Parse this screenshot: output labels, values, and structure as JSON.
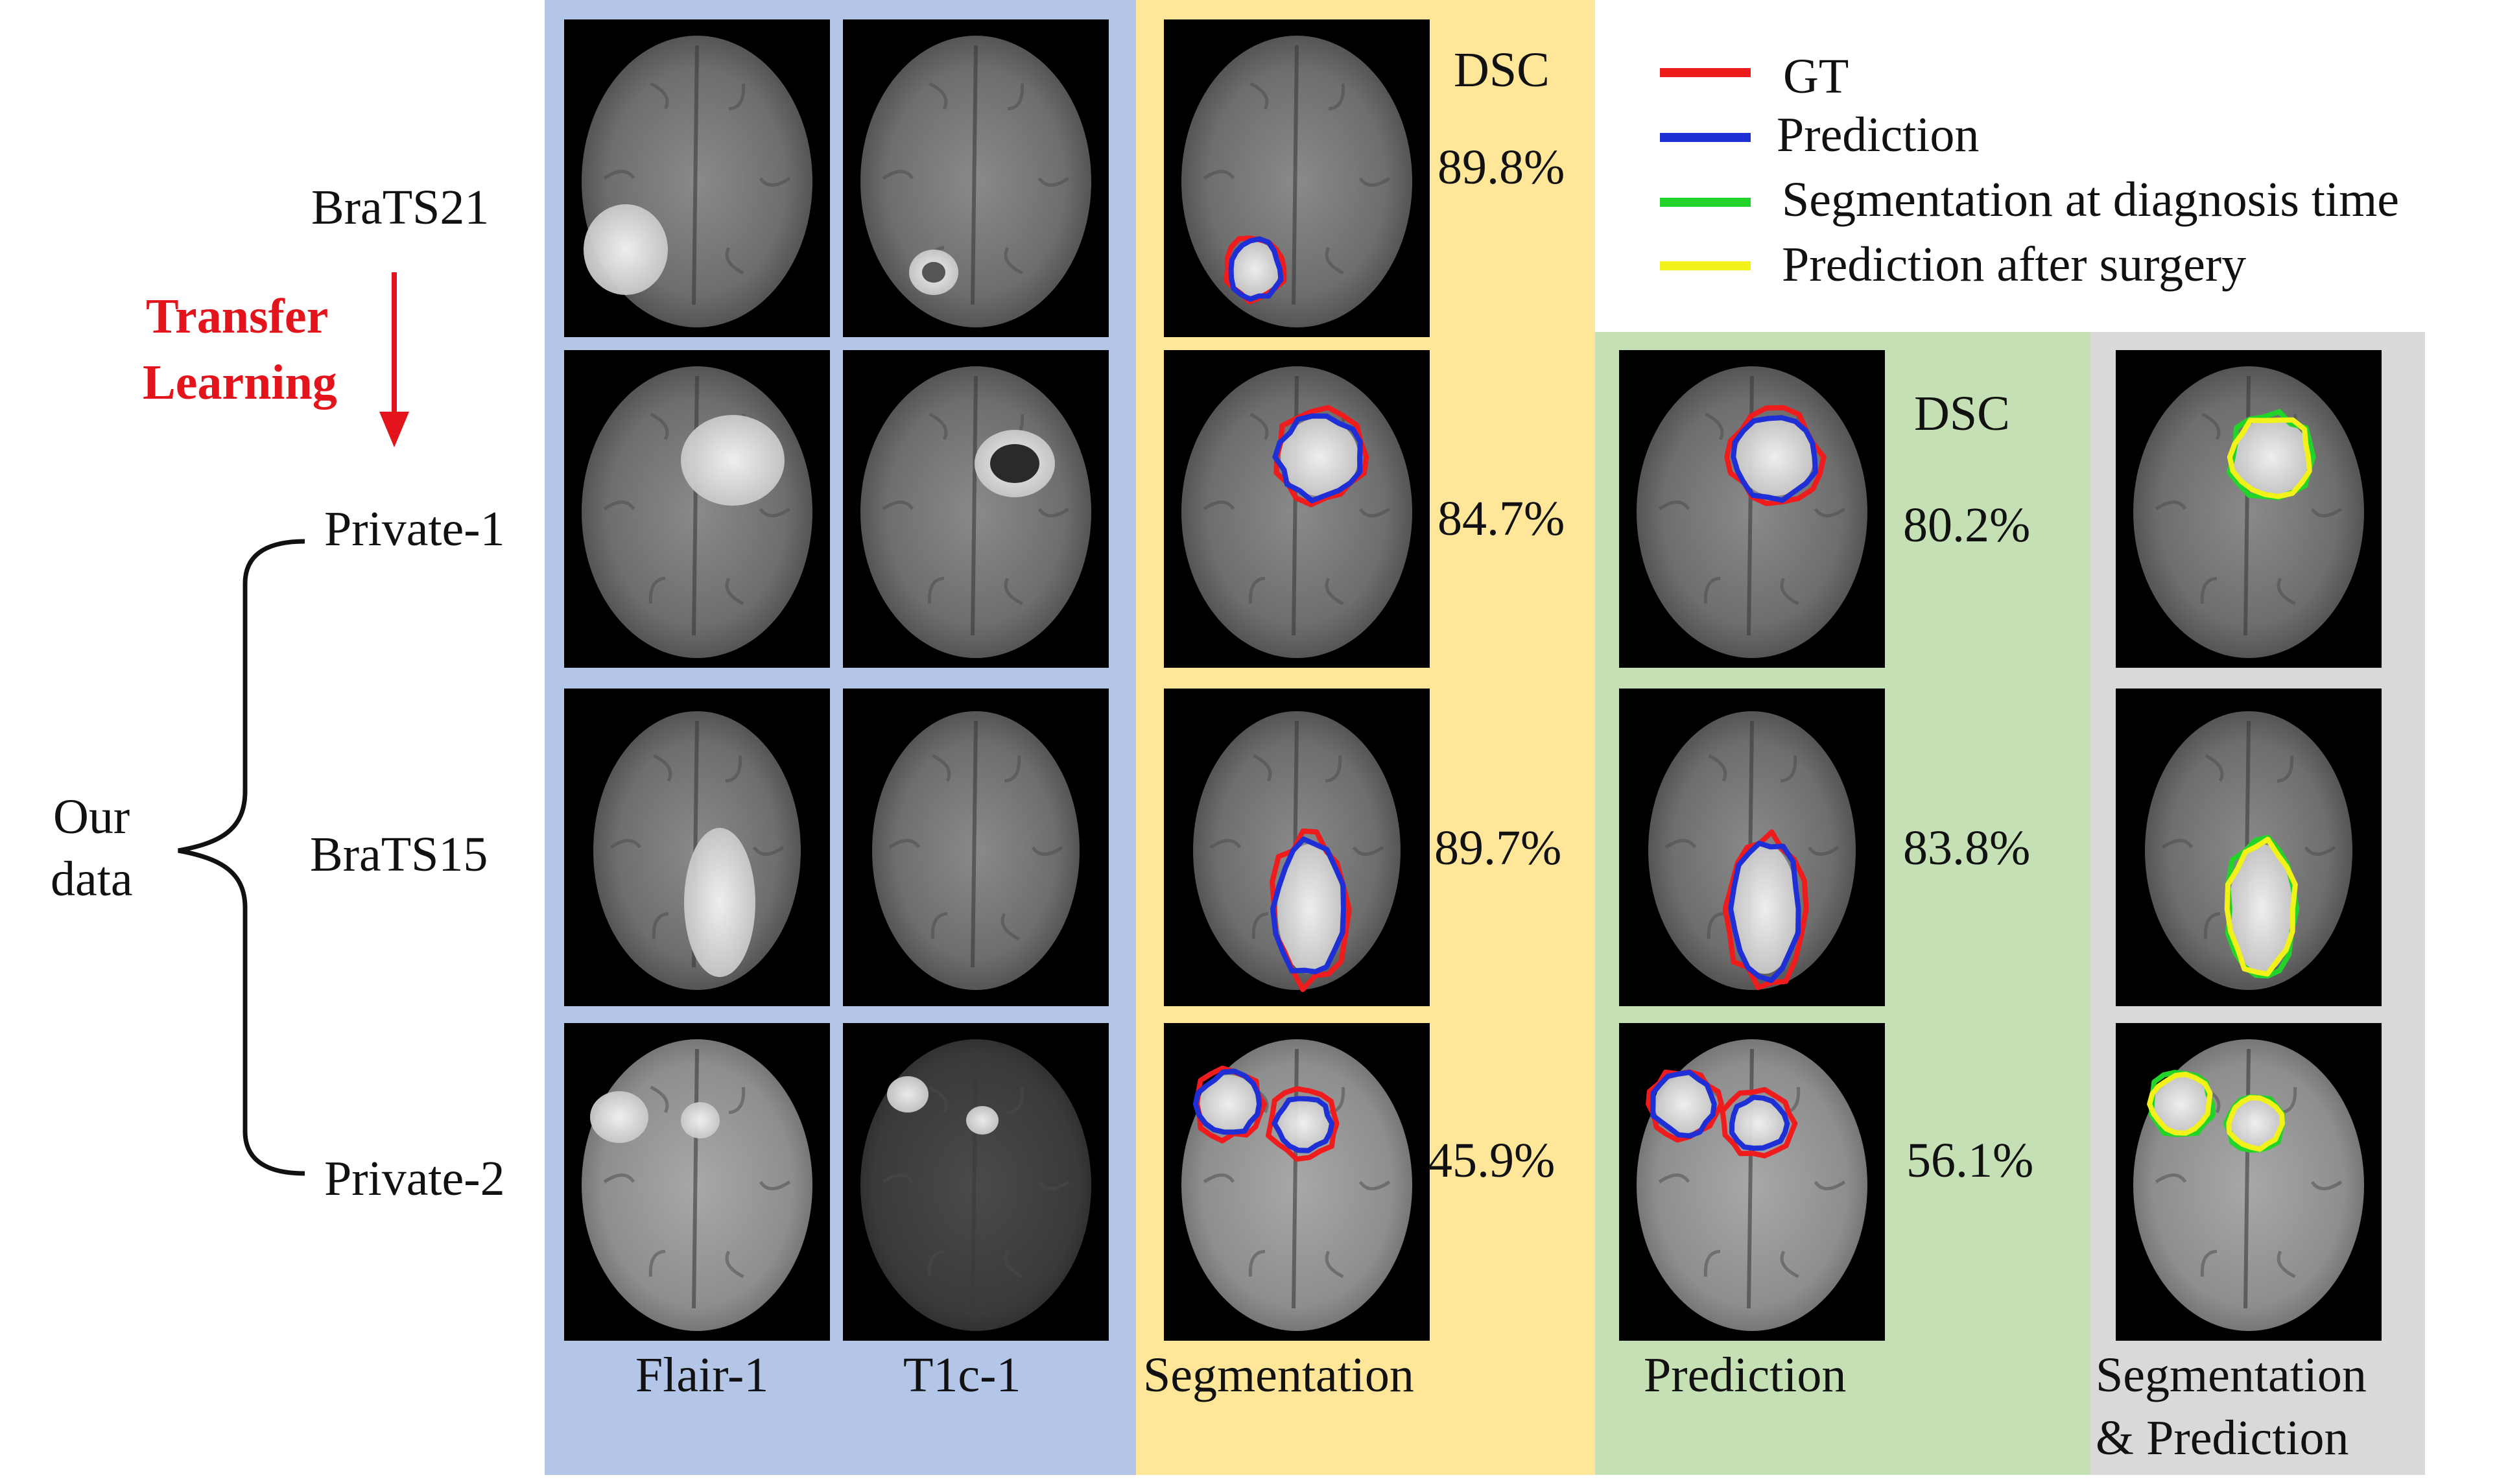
{
  "colors": {
    "blue_panel": "#b4c6e7",
    "yellow_panel": "#ffe699",
    "green_panel": "#c5e0b4",
    "gray_panel": "#d9d9d9",
    "gt": "#ee1c1c",
    "prediction": "#1f2fd6",
    "seg_diagnosis": "#22d42a",
    "pred_after_surgery": "#f2f21a",
    "transfer_arrow": "#e3141b"
  },
  "rows": [
    {
      "label": "BraTS21",
      "seg_dsc": "89.8%",
      "pred_dsc": ""
    },
    {
      "label": "Private-1",
      "seg_dsc": "84.7%",
      "pred_dsc": "80.2%"
    },
    {
      "label": "BraTS15",
      "seg_dsc": "89.7%",
      "pred_dsc": "83.8%"
    },
    {
      "label": "Private-2",
      "seg_dsc": "45.9%",
      "pred_dsc": "56.1%"
    }
  ],
  "transfer": {
    "line1": "Transfer",
    "line2": "Learning"
  },
  "our_data": {
    "line1": "Our",
    "line2": "data"
  },
  "dsc_label_seg": "DSC",
  "dsc_label_pred": "DSC",
  "columns": {
    "flair": "Flair-1",
    "t1c": "T1c-1",
    "segmentation": "Segmentation",
    "prediction": "Prediction",
    "seg_pred_line1": "Segmentation",
    "seg_pred_line2": "& Prediction"
  },
  "legend": [
    {
      "label": "GT",
      "color": "#ee1c1c"
    },
    {
      "label": "Prediction",
      "color": "#1f2fd6"
    },
    {
      "label": "Segmentation at diagnosis time",
      "color": "#22d42a"
    },
    {
      "label": "Prediction after surgery",
      "color": "#f2f21a"
    }
  ]
}
